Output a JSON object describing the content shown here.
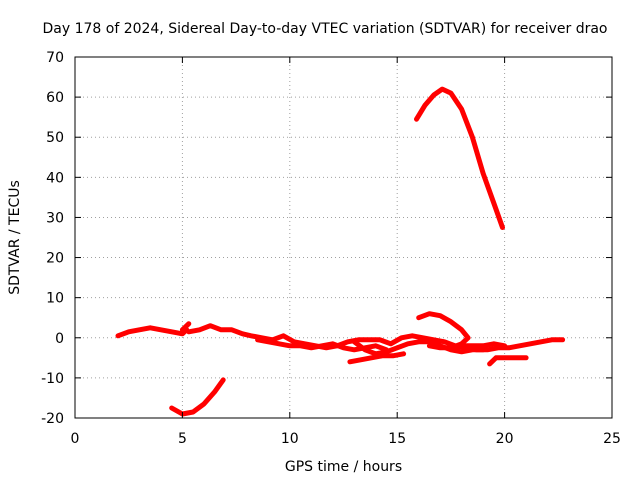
{
  "chart_data": {
    "type": "line",
    "title": "Day 178 of 2024, Sidereal Day-to-day VTEC variation (SDTVAR) for receiver drao",
    "xlabel": "GPS time / hours",
    "ylabel": "SDTVAR / TECUs",
    "xlim": [
      0,
      25
    ],
    "ylim": [
      -20,
      70
    ],
    "xticks": [
      0,
      5,
      10,
      15,
      20,
      25
    ],
    "yticks": [
      -20,
      -10,
      0,
      10,
      20,
      30,
      40,
      50,
      60,
      70
    ],
    "grid": true,
    "color": "#ff0000",
    "series": [
      {
        "name": "segment-1",
        "points": [
          [
            2.0,
            0.5
          ],
          [
            2.5,
            1.5
          ],
          [
            3.0,
            2.0
          ],
          [
            3.5,
            2.5
          ],
          [
            4.0,
            2.0
          ],
          [
            4.5,
            1.5
          ],
          [
            5.0,
            1.0
          ],
          [
            5.2,
            2.0
          ]
        ]
      },
      {
        "name": "segment-2",
        "points": [
          [
            5.3,
            3.5
          ],
          [
            5.0,
            2.0
          ]
        ]
      },
      {
        "name": "segment-3",
        "points": [
          [
            5.3,
            1.5
          ],
          [
            5.8,
            2.0
          ],
          [
            6.3,
            3.0
          ],
          [
            6.8,
            2.0
          ],
          [
            7.3,
            2.0
          ],
          [
            7.8,
            1.0
          ],
          [
            8.2,
            0.5
          ],
          [
            8.7,
            0.0
          ],
          [
            9.2,
            -0.5
          ],
          [
            9.7,
            0.5
          ],
          [
            10.2,
            -1.0
          ],
          [
            10.7,
            -1.5
          ],
          [
            11.2,
            -2.0
          ],
          [
            11.7,
            -2.5
          ],
          [
            12.2,
            -2.0
          ],
          [
            12.7,
            -1.0
          ],
          [
            13.2,
            -0.5
          ],
          [
            13.7,
            -0.5
          ],
          [
            14.2,
            -0.5
          ],
          [
            14.7,
            -1.5
          ],
          [
            15.2,
            0.0
          ],
          [
            15.7,
            0.5
          ],
          [
            16.2,
            0.0
          ],
          [
            16.7,
            -0.5
          ],
          [
            17.2,
            -1.0
          ],
          [
            17.7,
            -2.0
          ],
          [
            18.2,
            -2.5
          ],
          [
            18.7,
            -3.0
          ],
          [
            19.2,
            -3.0
          ],
          [
            19.7,
            -2.5
          ],
          [
            20.2,
            -2.5
          ],
          [
            20.7,
            -2.0
          ],
          [
            21.2,
            -1.5
          ],
          [
            21.7,
            -1.0
          ],
          [
            22.2,
            -0.5
          ],
          [
            22.7,
            -0.5
          ]
        ]
      },
      {
        "name": "segment-4",
        "points": [
          [
            8.5,
            -0.5
          ],
          [
            9.0,
            -1.0
          ],
          [
            9.5,
            -1.5
          ],
          [
            10.0,
            -2.0
          ],
          [
            10.5,
            -2.0
          ],
          [
            11.0,
            -2.5
          ],
          [
            11.5,
            -2.0
          ],
          [
            12.0,
            -1.5
          ],
          [
            12.5,
            -2.5
          ],
          [
            13.0,
            -3.0
          ],
          [
            13.5,
            -2.5
          ],
          [
            14.0,
            -2.0
          ],
          [
            14.5,
            -3.0
          ]
        ]
      },
      {
        "name": "segment-5",
        "points": [
          [
            12.8,
            -6.0
          ],
          [
            13.3,
            -5.5
          ],
          [
            13.8,
            -5.0
          ],
          [
            14.3,
            -4.5
          ],
          [
            14.8,
            -4.5
          ],
          [
            15.3,
            -4.0
          ]
        ]
      },
      {
        "name": "segment-6",
        "points": [
          [
            13.0,
            -1.0
          ],
          [
            13.5,
            -3.0
          ],
          [
            14.0,
            -4.0
          ],
          [
            14.5,
            -3.5
          ],
          [
            15.0,
            -2.5
          ],
          [
            15.5,
            -1.5
          ],
          [
            16.0,
            -1.0
          ],
          [
            16.5,
            -1.0
          ],
          [
            17.0,
            -2.0
          ],
          [
            17.5,
            -3.0
          ],
          [
            18.0,
            -3.5
          ],
          [
            18.5,
            -3.0
          ],
          [
            19.0,
            -3.0
          ]
        ]
      },
      {
        "name": "segment-7",
        "points": [
          [
            16.0,
            5.0
          ],
          [
            16.5,
            6.0
          ],
          [
            17.0,
            5.5
          ],
          [
            17.5,
            4.0
          ],
          [
            18.0,
            2.0
          ],
          [
            18.3,
            0.0
          ],
          [
            18.0,
            -1.5
          ],
          [
            17.5,
            -2.5
          ]
        ]
      },
      {
        "name": "segment-8",
        "points": [
          [
            16.5,
            -2.0
          ],
          [
            17.0,
            -2.5
          ],
          [
            17.5,
            -2.5
          ],
          [
            18.0,
            -2.0
          ],
          [
            18.5,
            -2.0
          ],
          [
            19.0,
            -2.0
          ],
          [
            19.5,
            -1.5
          ],
          [
            20.0,
            -2.0
          ]
        ]
      },
      {
        "name": "segment-9",
        "points": [
          [
            19.3,
            -6.5
          ],
          [
            19.6,
            -5.0
          ],
          [
            20.0,
            -5.0
          ],
          [
            20.5,
            -5.0
          ],
          [
            21.0,
            -5.0
          ]
        ]
      },
      {
        "name": "segment-10",
        "points": [
          [
            4.5,
            -17.5
          ],
          [
            5.0,
            -19.0
          ],
          [
            5.5,
            -18.5
          ],
          [
            6.0,
            -16.5
          ],
          [
            6.5,
            -13.5
          ],
          [
            6.9,
            -10.5
          ]
        ]
      },
      {
        "name": "segment-11",
        "points": [
          [
            15.9,
            54.5
          ],
          [
            16.3,
            58.0
          ],
          [
            16.7,
            60.5
          ],
          [
            17.1,
            62.0
          ],
          [
            17.5,
            61.0
          ],
          [
            18.0,
            57.0
          ],
          [
            18.5,
            50.0
          ],
          [
            19.0,
            41.0
          ],
          [
            19.5,
            33.5
          ],
          [
            19.9,
            27.5
          ]
        ]
      }
    ]
  }
}
